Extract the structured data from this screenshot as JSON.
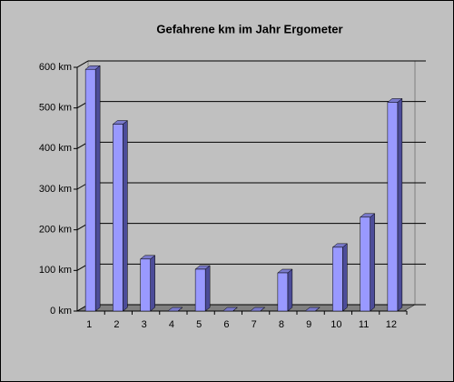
{
  "chart_data": {
    "type": "bar",
    "title": "Gefahrene km im Jahr Ergometer",
    "categories": [
      "1",
      "2",
      "3",
      "4",
      "5",
      "6",
      "7",
      "8",
      "9",
      "10",
      "11",
      "12"
    ],
    "values": [
      595,
      460,
      128,
      0,
      103,
      0,
      0,
      94,
      0,
      157,
      231,
      514
    ],
    "color": "#9999ff",
    "ylim": [
      0,
      600
    ],
    "yticks": [
      {
        "value": 0,
        "label": "0 km"
      },
      {
        "value": 100,
        "label": "100 km"
      },
      {
        "value": 200,
        "label": "200 km"
      },
      {
        "value": 300,
        "label": "300 km"
      },
      {
        "value": 400,
        "label": "400 km"
      },
      {
        "value": 500,
        "label": "500 km"
      },
      {
        "value": 600,
        "label": "600 km"
      }
    ],
    "grid": true
  }
}
